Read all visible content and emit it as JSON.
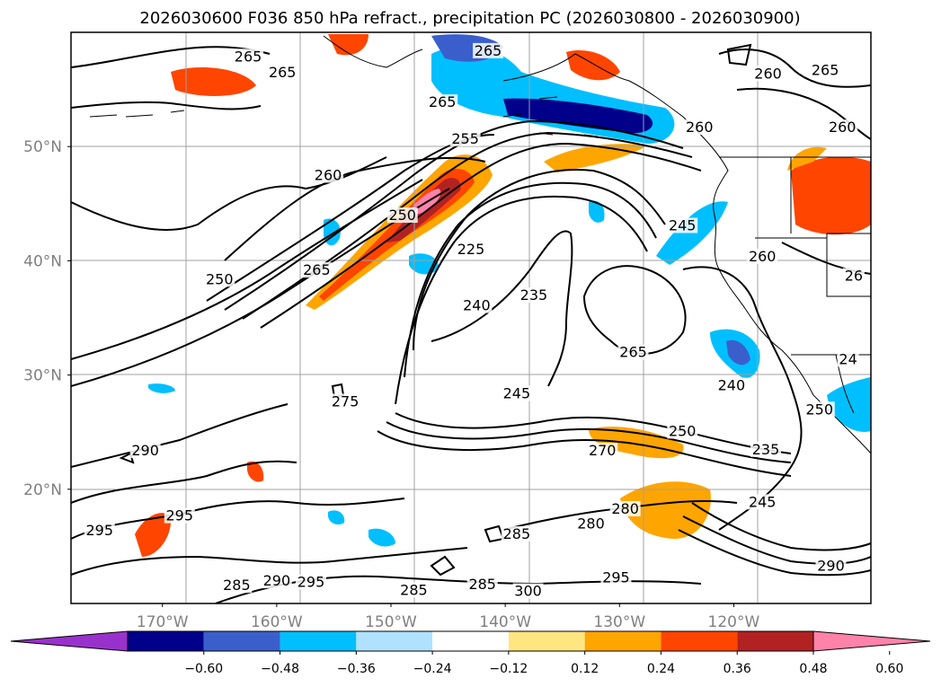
{
  "chart_data": {
    "type": "contour_map",
    "title": "2026030600 F036 850 hPa refract., precipitation PC (2026030800 - 2026030900)",
    "lon_range": [
      -178,
      -108
    ],
    "lat_range": [
      10,
      60
    ],
    "x_ticks": [
      {
        "value": -170,
        "label": "170°W"
      },
      {
        "value": -160,
        "label": "160°W"
      },
      {
        "value": -150,
        "label": "150°W"
      },
      {
        "value": -140,
        "label": "140°W"
      },
      {
        "value": -130,
        "label": "130°W"
      },
      {
        "value": -120,
        "label": "120°W"
      }
    ],
    "y_ticks": [
      {
        "value": 50,
        "label": "50°N"
      },
      {
        "value": 40,
        "label": "40°N"
      },
      {
        "value": 30,
        "label": "30°N"
      },
      {
        "value": 20,
        "label": "20°N"
      }
    ],
    "grid": true,
    "colorbar": {
      "levels": [
        -0.6,
        -0.48,
        -0.36,
        -0.24,
        -0.12,
        0.12,
        0.24,
        0.36,
        0.48,
        0.6
      ],
      "tick_labels": [
        "−0.60",
        "−0.48",
        "−0.36",
        "−0.24",
        "−0.12",
        "0.12",
        "0.24",
        "0.36",
        "0.48",
        "0.60"
      ],
      "colors": [
        "#9932cc",
        "#00008b",
        "#3a5fcd",
        "#00bfff",
        "#b0e2ff",
        "#ffffff",
        "#ffe680",
        "#ffa500",
        "#ff4500",
        "#b22222",
        "#ff82ab"
      ],
      "extend": "both"
    },
    "contour_labels": [
      {
        "lon": -162.5,
        "lat": 57.7,
        "text": "265"
      },
      {
        "lon": -159.5,
        "lat": 56.3,
        "text": "265"
      },
      {
        "lon": -145.5,
        "lat": 53.7,
        "text": "265"
      },
      {
        "lon": -141.5,
        "lat": 58.2,
        "text": "265"
      },
      {
        "lon": -123.0,
        "lat": 51.5,
        "text": "260"
      },
      {
        "lon": -117.0,
        "lat": 56.2,
        "text": "260"
      },
      {
        "lon": -112.0,
        "lat": 56.5,
        "text": "265"
      },
      {
        "lon": -110.5,
        "lat": 51.5,
        "text": "260"
      },
      {
        "lon": -143.5,
        "lat": 50.5,
        "text": "255"
      },
      {
        "lon": -155.5,
        "lat": 47.3,
        "text": "260"
      },
      {
        "lon": -149.0,
        "lat": 43.8,
        "text": "250"
      },
      {
        "lon": -165.0,
        "lat": 38.2,
        "text": "250"
      },
      {
        "lon": -156.5,
        "lat": 39.0,
        "text": "265"
      },
      {
        "lon": -143.0,
        "lat": 40.8,
        "text": "225"
      },
      {
        "lon": -142.5,
        "lat": 35.9,
        "text": "240"
      },
      {
        "lon": -137.5,
        "lat": 36.8,
        "text": "235"
      },
      {
        "lon": -124.5,
        "lat": 42.9,
        "text": "245"
      },
      {
        "lon": -117.5,
        "lat": 40.2,
        "text": "260"
      },
      {
        "lon": -109.5,
        "lat": 38.5,
        "text": "26"
      },
      {
        "lon": -128.8,
        "lat": 31.8,
        "text": "265"
      },
      {
        "lon": -120.2,
        "lat": 28.9,
        "text": "240"
      },
      {
        "lon": -112.5,
        "lat": 26.8,
        "text": "250"
      },
      {
        "lon": -110.0,
        "lat": 31.2,
        "text": "24"
      },
      {
        "lon": -124.5,
        "lat": 24.9,
        "text": "250"
      },
      {
        "lon": -117.2,
        "lat": 23.3,
        "text": "235"
      },
      {
        "lon": -139.0,
        "lat": 28.2,
        "text": "245"
      },
      {
        "lon": -154.0,
        "lat": 27.5,
        "text": "275"
      },
      {
        "lon": -131.5,
        "lat": 23.2,
        "text": "270"
      },
      {
        "lon": -171.5,
        "lat": 23.2,
        "text": "290"
      },
      {
        "lon": -175.5,
        "lat": 16.2,
        "text": "295"
      },
      {
        "lon": -168.5,
        "lat": 17.5,
        "text": "295"
      },
      {
        "lon": -160.0,
        "lat": 11.8,
        "text": "290"
      },
      {
        "lon": -163.5,
        "lat": 11.4,
        "text": "285"
      },
      {
        "lon": -157.0,
        "lat": 11.7,
        "text": "295"
      },
      {
        "lon": -148.0,
        "lat": 11.0,
        "text": "285"
      },
      {
        "lon": -142.0,
        "lat": 11.5,
        "text": "285"
      },
      {
        "lon": -139.0,
        "lat": 15.9,
        "text": "285"
      },
      {
        "lon": -132.5,
        "lat": 16.8,
        "text": "280"
      },
      {
        "lon": -129.5,
        "lat": 18.1,
        "text": "280"
      },
      {
        "lon": -138.0,
        "lat": 10.9,
        "text": "300"
      },
      {
        "lon": -130.3,
        "lat": 12.1,
        "text": "295"
      },
      {
        "lon": -117.5,
        "lat": 18.7,
        "text": "245"
      },
      {
        "lon": -111.5,
        "lat": 13.1,
        "text": "290"
      }
    ]
  }
}
